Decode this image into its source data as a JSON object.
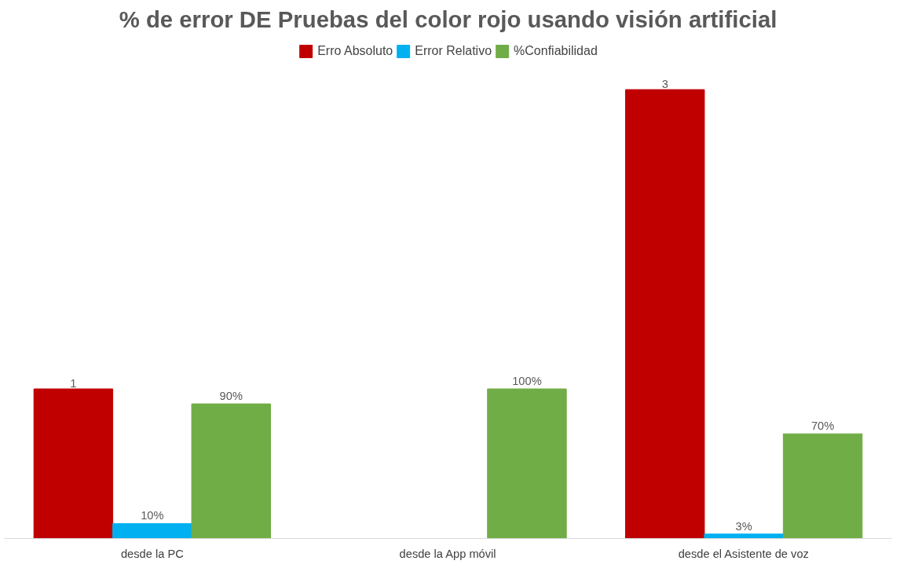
{
  "chart_data": {
    "type": "bar",
    "title": "% de error DE Pruebas del color rojo usando visión artificial",
    "categories": [
      "desde la PC",
      "desde la App móvil",
      "desde el Asistente de voz"
    ],
    "series": [
      {
        "name": "Erro Absoluto",
        "color": "#c00000",
        "values": [
          1,
          0,
          3
        ],
        "value_labels": [
          "1",
          null,
          "3"
        ]
      },
      {
        "name": "Error Relativo",
        "color": "#00b0f0",
        "values": [
          0.1,
          0,
          0.03
        ],
        "value_labels": [
          "10%",
          null,
          "3%"
        ]
      },
      {
        "name": "%Confiabilidad",
        "color": "#70ad47",
        "values": [
          0.9,
          1,
          0.7
        ],
        "value_labels": [
          "90%",
          "100%",
          "70%"
        ]
      }
    ],
    "legend": "top",
    "grid": false
  }
}
